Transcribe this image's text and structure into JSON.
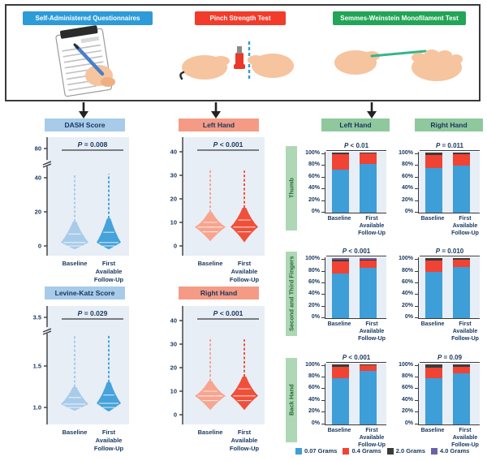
{
  "colors": {
    "top-blue": "#2E9BD9",
    "top-red": "#F23B2B",
    "top-green": "#23A457",
    "hdr-blue": "#A7CBE9",
    "hdr-salmon": "#F59B85",
    "hdr-green": "#90C89D",
    "rowlabel-green": "#AED7B5",
    "rowlabel-text": "#256B38",
    "plot-bg": "#E7EEF6",
    "navy": "#17365D",
    "violin-blue-light": "#A8CBE9",
    "violin-blue-dark": "#45A2DB",
    "violin-red-light": "#F8A48E",
    "violin-red-dark": "#F0503A"
  },
  "labels": {
    "p_symbol": "P",
    "baseline": "Baseline",
    "followup_lines": [
      "First",
      "Available",
      "Follow-Up"
    ]
  },
  "top_box": {
    "tests": [
      {
        "name": "Self-Administered Questionnaires",
        "color_key": "top-blue"
      },
      {
        "name": "Pinch Strength Test",
        "color_key": "top-red"
      },
      {
        "name": "Semmes-Weinstein Monofilament Test",
        "color_key": "top-green"
      }
    ]
  },
  "monofilament": {
    "columns": [
      "Left Hand",
      "Right Hand"
    ],
    "rows": [
      "Thumb",
      "Second and Third Fingers",
      "Back Hand"
    ],
    "y_ticks": [
      "100%",
      "80%",
      "60%",
      "40%",
      "20%",
      "0%"
    ]
  },
  "legend": [
    {
      "label": "0.07 Grams",
      "color": "#3D9ED8"
    },
    {
      "label": "0.4 Grams",
      "color": "#F04333"
    },
    {
      "label": "2.0 Grams",
      "color": "#3B3B3B"
    },
    {
      "label": "4.0 Grams",
      "color": "#6A61A9"
    }
  ],
  "chart_data": [
    {
      "id": "dash",
      "type": "violin",
      "title": "DASH Score",
      "p_rest": " = 0.008",
      "categories": [
        "Baseline",
        "First Available Follow-Up"
      ],
      "y_ticks": [
        "80",
        "40",
        "20",
        "0"
      ],
      "y_axis_break": true,
      "groups": [
        {
          "name": "Baseline",
          "min": -2,
          "q1": 0,
          "median": 2,
          "q3": 7,
          "max": 44
        },
        {
          "name": "First Available Follow-Up",
          "min": -2,
          "q1": 0,
          "median": 2,
          "q3": 8,
          "max": 45
        }
      ]
    },
    {
      "id": "levine",
      "type": "violin",
      "title": "Levine-Katz Score",
      "p_rest": " = 0.029",
      "categories": [
        "Baseline",
        "First Available Follow-Up"
      ],
      "y_ticks": [
        "3.5",
        "1.5",
        "1.0"
      ],
      "y_axis_break": true,
      "groups": [
        {
          "name": "Baseline",
          "min": 0.96,
          "q1": 1.0,
          "median": 1.04,
          "q3": 1.12,
          "max": 3.4
        },
        {
          "name": "First Available Follow-Up",
          "min": 0.95,
          "q1": 1.0,
          "median": 1.05,
          "q3": 1.15,
          "max": 3.4
        }
      ]
    },
    {
      "id": "pinch-left",
      "type": "violin",
      "title": "Left Hand",
      "p_rest": " < 0.001",
      "categories": [
        "Baseline",
        "First Available Follow-Up"
      ],
      "y_ticks": [
        "40",
        "30",
        "20",
        "10",
        "0"
      ],
      "y_axis_break": false,
      "groups": [
        {
          "name": "Baseline",
          "min": 2,
          "q1": 6,
          "median": 8,
          "q3": 10,
          "max": 33
        },
        {
          "name": "First Available Follow-Up",
          "min": 1.5,
          "q1": 6,
          "median": 8,
          "q3": 11,
          "max": 32
        }
      ]
    },
    {
      "id": "pinch-right",
      "type": "violin",
      "title": "Right Hand",
      "p_rest": " < 0.001",
      "categories": [
        "Baseline",
        "First Available Follow-Up"
      ],
      "y_ticks": [
        "40",
        "30",
        "20",
        "10",
        "0"
      ],
      "y_axis_break": false,
      "groups": [
        {
          "name": "Baseline",
          "min": 2,
          "q1": 6,
          "median": 8,
          "q3": 10,
          "max": 33
        },
        {
          "name": "First Available Follow-Up",
          "min": 2,
          "q1": 6,
          "median": 8,
          "q3": 11,
          "max": 32
        }
      ]
    },
    {
      "id": "mono-thumb-left",
      "type": "stacked_bar_pct",
      "row": "Thumb",
      "column": "Left Hand",
      "p_rest": " < 0.01",
      "categories": [
        "Baseline",
        "First Available Follow-Up"
      ],
      "series": [
        {
          "name": "0.07 Grams",
          "values": [
            71,
            81
          ]
        },
        {
          "name": "0.4 Grams",
          "values": [
            26,
            18
          ]
        },
        {
          "name": "2.0 Grams",
          "values": [
            3,
            1
          ]
        },
        {
          "name": "4.0 Grams",
          "values": [
            0,
            0
          ]
        }
      ]
    },
    {
      "id": "mono-thumb-right",
      "type": "stacked_bar_pct",
      "row": "Thumb",
      "column": "Right Hand",
      "p_rest": " = 0.011",
      "categories": [
        "Baseline",
        "First Available Follow-Up"
      ],
      "series": [
        {
          "name": "0.07 Grams",
          "values": [
            74,
            79
          ]
        },
        {
          "name": "0.4 Grams",
          "values": [
            22,
            19
          ]
        },
        {
          "name": "2.0 Grams",
          "values": [
            4,
            2
          ]
        },
        {
          "name": "4.0 Grams",
          "values": [
            0,
            0
          ]
        }
      ]
    },
    {
      "id": "mono-fingers-left",
      "type": "stacked_bar_pct",
      "row": "Second and Third Fingers",
      "column": "Left Hand",
      "p_rest": " < 0.001",
      "categories": [
        "Baseline",
        "First Available Follow-Up"
      ],
      "series": [
        {
          "name": "0.07 Grams",
          "values": [
            75,
            84
          ]
        },
        {
          "name": "0.4 Grams",
          "values": [
            20,
            12
          ]
        },
        {
          "name": "2.0 Grams",
          "values": [
            3,
            2
          ]
        },
        {
          "name": "4.0 Grams",
          "values": [
            2,
            2
          ]
        }
      ]
    },
    {
      "id": "mono-fingers-right",
      "type": "stacked_bar_pct",
      "row": "Second and Third Fingers",
      "column": "Right Hand",
      "p_rest": " = 0.010",
      "categories": [
        "Baseline",
        "First Available Follow-Up"
      ],
      "series": [
        {
          "name": "0.07 Grams",
          "values": [
            77,
            85
          ]
        },
        {
          "name": "0.4 Grams",
          "values": [
            19,
            13
          ]
        },
        {
          "name": "2.0 Grams",
          "values": [
            4,
            2
          ]
        },
        {
          "name": "4.0 Grams",
          "values": [
            0,
            0
          ]
        }
      ]
    },
    {
      "id": "mono-back-left",
      "type": "stacked_bar_pct",
      "row": "Back Hand",
      "column": "Left Hand",
      "p_rest": " < 0.001",
      "categories": [
        "Baseline",
        "First Available Follow-Up"
      ],
      "series": [
        {
          "name": "0.07 Grams",
          "values": [
            77,
            88
          ]
        },
        {
          "name": "0.4 Grams",
          "values": [
            18,
            10
          ]
        },
        {
          "name": "2.0 Grams",
          "values": [
            5,
            2
          ]
        },
        {
          "name": "4.0 Grams",
          "values": [
            0,
            0
          ]
        }
      ]
    },
    {
      "id": "mono-back-right",
      "type": "stacked_bar_pct",
      "row": "Back Hand",
      "column": "Right Hand",
      "p_rest": " = 0.09",
      "categories": [
        "Baseline",
        "First Available Follow-Up"
      ],
      "series": [
        {
          "name": "0.07 Grams",
          "values": [
            77,
            84
          ]
        },
        {
          "name": "0.4 Grams",
          "values": [
            17,
            11
          ]
        },
        {
          "name": "2.0 Grams",
          "values": [
            6,
            5
          ]
        },
        {
          "name": "4.0 Grams",
          "values": [
            0,
            0
          ]
        }
      ]
    }
  ]
}
